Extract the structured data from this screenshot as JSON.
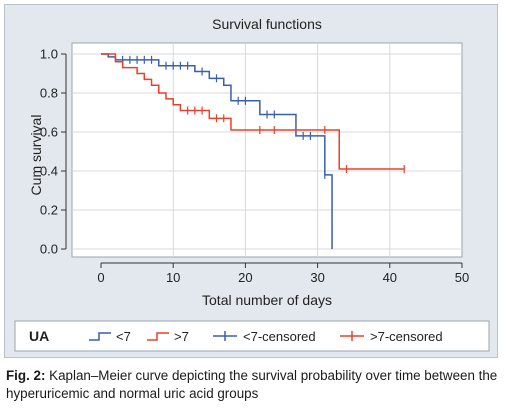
{
  "chart_data": {
    "type": "line",
    "title": "Survival functions",
    "xlabel": "Total number of days",
    "ylabel": "Cum survival",
    "xlim": [
      0,
      50
    ],
    "ylim": [
      0.0,
      1.0
    ],
    "x_ticks": [
      "0",
      "10",
      "20",
      "30",
      "40",
      "50"
    ],
    "y_ticks": [
      "0.0",
      "0.2",
      "0.4",
      "0.6",
      "0.8",
      "1.0"
    ],
    "x_tick_values": [
      0,
      10,
      20,
      30,
      40,
      50
    ],
    "y_tick_values": [
      0.0,
      0.2,
      0.4,
      0.6,
      0.8,
      1.0
    ],
    "grid": true,
    "legend": {
      "title": "UA",
      "placement": "bottom",
      "entries": [
        "<7",
        ">7",
        "<7-censored",
        ">7-censored"
      ]
    },
    "series": [
      {
        "name": "<7",
        "color": "#3a5fb0",
        "steps": [
          [
            0,
            1.0
          ],
          [
            1,
            0.985
          ],
          [
            2,
            0.97
          ],
          [
            8,
            0.94
          ],
          [
            13,
            0.91
          ],
          [
            15,
            0.875
          ],
          [
            17,
            0.84
          ],
          [
            18,
            0.76
          ],
          [
            22,
            0.69
          ],
          [
            27,
            0.58
          ],
          [
            31,
            0.38
          ],
          [
            32,
            0.0
          ]
        ],
        "censored": [
          [
            3,
            0.97
          ],
          [
            4,
            0.97
          ],
          [
            5,
            0.97
          ],
          [
            6,
            0.97
          ],
          [
            7,
            0.97
          ],
          [
            9,
            0.94
          ],
          [
            10,
            0.94
          ],
          [
            11,
            0.94
          ],
          [
            12,
            0.94
          ],
          [
            14,
            0.91
          ],
          [
            16,
            0.875
          ],
          [
            19,
            0.76
          ],
          [
            20,
            0.76
          ],
          [
            23,
            0.69
          ],
          [
            24,
            0.69
          ],
          [
            28,
            0.58
          ],
          [
            29,
            0.58
          ],
          [
            31,
            0.38
          ]
        ]
      },
      {
        "name": ">7",
        "color": "#e8402a",
        "steps": [
          [
            0,
            1.0
          ],
          [
            2,
            0.96
          ],
          [
            3,
            0.93
          ],
          [
            5,
            0.9
          ],
          [
            6,
            0.87
          ],
          [
            7,
            0.84
          ],
          [
            8,
            0.8
          ],
          [
            9,
            0.77
          ],
          [
            10,
            0.74
          ],
          [
            11,
            0.71
          ],
          [
            15,
            0.67
          ],
          [
            18,
            0.61
          ],
          [
            33,
            0.41
          ],
          [
            42,
            0.41
          ]
        ],
        "censored": [
          [
            12,
            0.71
          ],
          [
            13,
            0.71
          ],
          [
            14,
            0.71
          ],
          [
            16,
            0.67
          ],
          [
            17,
            0.67
          ],
          [
            22,
            0.61
          ],
          [
            24,
            0.61
          ],
          [
            31,
            0.61
          ],
          [
            34,
            0.41
          ],
          [
            42,
            0.41
          ]
        ]
      }
    ]
  },
  "caption": {
    "label": "Fig. 2:",
    "text": " Kaplan–Meier curve depicting the survival probability over time between the hyperuricemic and normal uric acid groups"
  }
}
